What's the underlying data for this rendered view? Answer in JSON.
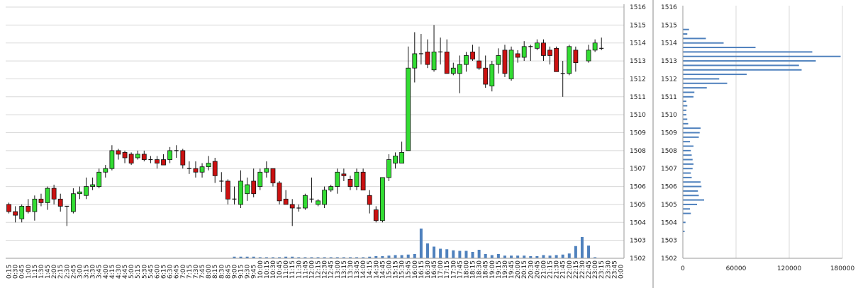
{
  "chart_data": [
    {
      "type": "candlestick",
      "title": "",
      "xlabel": "",
      "ylabel": "",
      "ylim": [
        1502,
        1516
      ],
      "y_ticks": [
        "1502",
        "1503",
        "1504",
        "1505",
        "1506",
        "1507",
        "1508",
        "1509",
        "1510",
        "1511",
        "1512",
        "1513",
        "1514",
        "1515",
        "1516"
      ],
      "grid": true,
      "colors": {
        "up": "#33dd33",
        "down": "#cc1111",
        "volume": "#4f81bd",
        "grid": "#d8d8d8"
      },
      "candles": [
        {
          "t": "0:15",
          "o": 1505.0,
          "h": 1505.1,
          "l": 1504.5,
          "c": 1504.6
        },
        {
          "t": "0:30",
          "o": 1504.6,
          "h": 1504.9,
          "l": 1504.0,
          "c": 1504.4
        },
        {
          "t": "0:45",
          "o": 1504.2,
          "h": 1505.0,
          "l": 1504.0,
          "c": 1504.9
        },
        {
          "t": "1:00",
          "o": 1504.9,
          "h": 1505.3,
          "l": 1504.5,
          "c": 1504.6
        },
        {
          "t": "1:15",
          "o": 1504.6,
          "h": 1505.5,
          "l": 1504.1,
          "c": 1505.3
        },
        {
          "t": "1:30",
          "o": 1505.3,
          "h": 1505.6,
          "l": 1504.9,
          "c": 1505.1
        },
        {
          "t": "1:45",
          "o": 1505.1,
          "h": 1506.0,
          "l": 1504.7,
          "c": 1505.9
        },
        {
          "t": "2:00",
          "o": 1505.9,
          "h": 1506.1,
          "l": 1505.0,
          "c": 1505.3
        },
        {
          "t": "2:15",
          "o": 1505.3,
          "h": 1505.6,
          "l": 1504.6,
          "c": 1504.9
        },
        {
          "t": "2:30",
          "o": 1504.9,
          "h": 1504.9,
          "l": 1503.8,
          "c": 1504.9
        },
        {
          "t": "2:45",
          "o": 1504.6,
          "h": 1505.9,
          "l": 1504.5,
          "c": 1505.6
        },
        {
          "t": "3:00",
          "o": 1505.6,
          "h": 1506.0,
          "l": 1505.3,
          "c": 1505.7
        },
        {
          "t": "3:15",
          "o": 1505.5,
          "h": 1506.5,
          "l": 1505.3,
          "c": 1506.0
        },
        {
          "t": "3:30",
          "o": 1506.0,
          "h": 1506.5,
          "l": 1505.8,
          "c": 1506.1
        },
        {
          "t": "3:45",
          "o": 1506.0,
          "h": 1507.0,
          "l": 1505.9,
          "c": 1506.8
        },
        {
          "t": "4:00",
          "o": 1506.8,
          "h": 1507.2,
          "l": 1506.5,
          "c": 1507.0
        },
        {
          "t": "4:15",
          "o": 1507.0,
          "h": 1508.3,
          "l": 1506.9,
          "c": 1508.0
        },
        {
          "t": "4:30",
          "o": 1508.0,
          "h": 1508.1,
          "l": 1507.5,
          "c": 1507.8
        },
        {
          "t": "4:45",
          "o": 1507.9,
          "h": 1508.0,
          "l": 1507.3,
          "c": 1507.6
        },
        {
          "t": "5:00",
          "o": 1507.8,
          "h": 1507.9,
          "l": 1507.2,
          "c": 1507.3
        },
        {
          "t": "5:15",
          "o": 1507.6,
          "h": 1508.0,
          "l": 1507.5,
          "c": 1507.8
        },
        {
          "t": "5:30",
          "o": 1507.8,
          "h": 1508.0,
          "l": 1507.4,
          "c": 1507.5
        },
        {
          "t": "5:45",
          "o": 1507.5,
          "h": 1507.7,
          "l": 1507.3,
          "c": 1507.5
        },
        {
          "t": "6:00",
          "o": 1507.5,
          "h": 1507.7,
          "l": 1507.0,
          "c": 1507.3
        },
        {
          "t": "6:15",
          "o": 1507.5,
          "h": 1507.8,
          "l": 1507.2,
          "c": 1507.2
        },
        {
          "t": "6:30",
          "o": 1507.5,
          "h": 1508.2,
          "l": 1507.3,
          "c": 1508.0
        },
        {
          "t": "6:45",
          "o": 1508.0,
          "h": 1508.3,
          "l": 1507.6,
          "c": 1508.0
        },
        {
          "t": "7:00",
          "o": 1508.0,
          "h": 1508.1,
          "l": 1507.0,
          "c": 1507.2
        },
        {
          "t": "7:15",
          "o": 1507.0,
          "h": 1507.4,
          "l": 1506.7,
          "c": 1507.0
        },
        {
          "t": "7:30",
          "o": 1507.0,
          "h": 1507.4,
          "l": 1506.5,
          "c": 1506.8
        },
        {
          "t": "7:45",
          "o": 1506.8,
          "h": 1507.3,
          "l": 1506.5,
          "c": 1507.1
        },
        {
          "t": "8:00",
          "o": 1507.1,
          "h": 1507.7,
          "l": 1506.9,
          "c": 1507.3
        },
        {
          "t": "8:15",
          "o": 1507.4,
          "h": 1507.6,
          "l": 1506.2,
          "c": 1506.6
        },
        {
          "t": "8:30",
          "o": 1506.3,
          "h": 1506.8,
          "l": 1505.7,
          "c": 1506.3
        },
        {
          "t": "8:45",
          "o": 1506.3,
          "h": 1506.4,
          "l": 1505.0,
          "c": 1505.3
        },
        {
          "t": "9:00",
          "o": 1505.3,
          "h": 1506.0,
          "l": 1505.0,
          "c": 1505.3
        },
        {
          "t": "9:15",
          "o": 1505.0,
          "h": 1506.9,
          "l": 1504.8,
          "c": 1506.3
        },
        {
          "t": "9:30",
          "o": 1505.6,
          "h": 1506.5,
          "l": 1505.2,
          "c": 1506.1
        },
        {
          "t": "9:45",
          "o": 1506.3,
          "h": 1507.0,
          "l": 1505.4,
          "c": 1505.6
        },
        {
          "t": "10:00",
          "o": 1506.0,
          "h": 1507.0,
          "l": 1505.8,
          "c": 1506.8
        },
        {
          "t": "10:15",
          "o": 1506.8,
          "h": 1507.4,
          "l": 1506.5,
          "c": 1507.0
        },
        {
          "t": "10:30",
          "o": 1507.0,
          "h": 1507.0,
          "l": 1506.0,
          "c": 1506.2
        },
        {
          "t": "10:45",
          "o": 1506.2,
          "h": 1506.3,
          "l": 1505.0,
          "c": 1505.2
        },
        {
          "t": "11:00",
          "o": 1505.3,
          "h": 1505.8,
          "l": 1505.0,
          "c": 1505.0
        },
        {
          "t": "11:15",
          "o": 1505.0,
          "h": 1505.3,
          "l": 1503.8,
          "c": 1504.8
        },
        {
          "t": "11:30",
          "o": 1504.8,
          "h": 1505.0,
          "l": 1504.6,
          "c": 1504.8
        },
        {
          "t": "11:45",
          "o": 1504.8,
          "h": 1505.6,
          "l": 1504.7,
          "c": 1505.5
        },
        {
          "t": "12:00",
          "o": 1505.3,
          "h": 1506.5,
          "l": 1505.1,
          "c": 1505.3
        },
        {
          "t": "12:15",
          "o": 1505.0,
          "h": 1505.3,
          "l": 1504.9,
          "c": 1505.2
        },
        {
          "t": "12:30",
          "o": 1505.0,
          "h": 1506.0,
          "l": 1504.8,
          "c": 1505.8
        },
        {
          "t": "12:45",
          "o": 1505.8,
          "h": 1506.1,
          "l": 1505.7,
          "c": 1506.0
        },
        {
          "t": "13:00",
          "o": 1506.0,
          "h": 1507.0,
          "l": 1505.6,
          "c": 1506.8
        },
        {
          "t": "13:15",
          "o": 1506.7,
          "h": 1507.0,
          "l": 1506.3,
          "c": 1506.6
        },
        {
          "t": "13:30",
          "o": 1506.4,
          "h": 1506.6,
          "l": 1505.8,
          "c": 1506.0
        },
        {
          "t": "13:45",
          "o": 1506.0,
          "h": 1507.0,
          "l": 1505.8,
          "c": 1506.8
        },
        {
          "t": "14:00",
          "o": 1506.8,
          "h": 1507.0,
          "l": 1505.8,
          "c": 1505.8
        },
        {
          "t": "14:15",
          "o": 1505.5,
          "h": 1505.8,
          "l": 1504.5,
          "c": 1505.0
        },
        {
          "t": "14:30",
          "o": 1504.7,
          "h": 1504.9,
          "l": 1504.0,
          "c": 1504.1
        },
        {
          "t": "14:45",
          "o": 1504.1,
          "h": 1506.5,
          "l": 1504.0,
          "c": 1506.5
        },
        {
          "t": "15:00",
          "o": 1506.5,
          "h": 1507.8,
          "l": 1506.3,
          "c": 1507.5
        },
        {
          "t": "15:15",
          "o": 1507.3,
          "h": 1507.9,
          "l": 1507.0,
          "c": 1507.7
        },
        {
          "t": "15:30",
          "o": 1507.3,
          "h": 1508.5,
          "l": 1507.3,
          "c": 1507.9
        },
        {
          "t": "15:45",
          "o": 1508.0,
          "h": 1513.8,
          "l": 1508.0,
          "c": 1512.6
        },
        {
          "t": "16:00",
          "o": 1512.6,
          "h": 1514.6,
          "l": 1511.8,
          "c": 1513.4
        },
        {
          "t": "16:15",
          "o": 1513.4,
          "h": 1514.5,
          "l": 1512.8,
          "c": 1513.4
        },
        {
          "t": "16:30",
          "o": 1513.5,
          "h": 1514.2,
          "l": 1512.6,
          "c": 1512.8
        },
        {
          "t": "16:45",
          "o": 1512.5,
          "h": 1515.0,
          "l": 1512.4,
          "c": 1513.5
        },
        {
          "t": "17:00",
          "o": 1513.5,
          "h": 1514.3,
          "l": 1512.8,
          "c": 1513.5
        },
        {
          "t": "17:15",
          "o": 1513.5,
          "h": 1514.2,
          "l": 1512.3,
          "c": 1512.3
        },
        {
          "t": "17:30",
          "o": 1512.3,
          "h": 1512.9,
          "l": 1512.2,
          "c": 1512.6
        },
        {
          "t": "17:45",
          "o": 1512.3,
          "h": 1513.3,
          "l": 1511.2,
          "c": 1512.8
        },
        {
          "t": "18:00",
          "o": 1512.8,
          "h": 1513.5,
          "l": 1512.4,
          "c": 1513.3
        },
        {
          "t": "18:15",
          "o": 1513.5,
          "h": 1513.9,
          "l": 1513.0,
          "c": 1513.1
        },
        {
          "t": "18:30",
          "o": 1513.0,
          "h": 1513.8,
          "l": 1512.5,
          "c": 1512.6
        },
        {
          "t": "18:45",
          "o": 1512.6,
          "h": 1513.3,
          "l": 1511.5,
          "c": 1511.7
        },
        {
          "t": "19:00",
          "o": 1511.6,
          "h": 1513.0,
          "l": 1511.3,
          "c": 1512.8
        },
        {
          "t": "19:15",
          "o": 1512.8,
          "h": 1513.7,
          "l": 1512.3,
          "c": 1513.3
        },
        {
          "t": "19:30",
          "o": 1513.6,
          "h": 1513.9,
          "l": 1512.1,
          "c": 1512.3
        },
        {
          "t": "19:45",
          "o": 1512.0,
          "h": 1513.8,
          "l": 1511.9,
          "c": 1513.6
        },
        {
          "t": "20:00",
          "o": 1513.4,
          "h": 1513.6,
          "l": 1512.9,
          "c": 1513.2
        },
        {
          "t": "20:15",
          "o": 1513.2,
          "h": 1514.1,
          "l": 1513.0,
          "c": 1513.8
        },
        {
          "t": "20:30",
          "o": 1513.8,
          "h": 1513.9,
          "l": 1513.0,
          "c": 1513.8
        },
        {
          "t": "20:45",
          "o": 1513.7,
          "h": 1514.2,
          "l": 1513.6,
          "c": 1514.0
        },
        {
          "t": "21:00",
          "o": 1514.0,
          "h": 1514.2,
          "l": 1513.0,
          "c": 1513.3
        },
        {
          "t": "21:15",
          "o": 1513.6,
          "h": 1513.8,
          "l": 1512.8,
          "c": 1513.3
        },
        {
          "t": "21:30",
          "o": 1513.7,
          "h": 1513.8,
          "l": 1512.4,
          "c": 1512.4
        },
        {
          "t": "21:45",
          "o": 1512.3,
          "h": 1513.0,
          "l": 1511.0,
          "c": 1512.3
        },
        {
          "t": "22:00",
          "o": 1512.3,
          "h": 1513.9,
          "l": 1512.2,
          "c": 1513.8
        },
        {
          "t": "22:15",
          "o": 1513.6,
          "h": 1513.8,
          "l": 1512.4,
          "c": 1512.9
        },
        {
          "t": "22:30",
          "o": null,
          "h": null,
          "l": null,
          "c": null
        },
        {
          "t": "22:45",
          "o": 1513.0,
          "h": 1513.9,
          "l": 1512.9,
          "c": 1513.6
        },
        {
          "t": "23:00",
          "o": 1513.6,
          "h": 1514.2,
          "l": 1513.5,
          "c": 1514.0
        },
        {
          "t": "23:15",
          "o": 1513.7,
          "h": 1514.3,
          "l": 1513.6,
          "c": 1513.7
        },
        {
          "t": "23:30",
          "o": null,
          "h": null,
          "l": null,
          "c": null
        },
        {
          "t": "23:45",
          "o": null,
          "h": null,
          "l": null,
          "c": null
        },
        {
          "t": "0:00",
          "o": null,
          "h": null,
          "l": null,
          "c": null
        }
      ],
      "volume_relative": [
        0,
        0,
        0,
        0,
        0,
        0,
        0,
        0,
        0,
        0,
        0,
        0,
        0,
        0,
        0,
        0,
        0,
        0,
        0,
        0,
        0,
        0,
        0,
        0,
        0,
        0,
        0,
        0,
        0,
        0,
        0,
        0,
        0,
        0,
        0,
        0.3,
        0.3,
        0.3,
        0.3,
        0.2,
        0.2,
        0.2,
        0.2,
        0.3,
        0.3,
        0.2,
        0.2,
        0.2,
        0.2,
        0.2,
        0.2,
        0.2,
        0.2,
        0.2,
        0.2,
        0.2,
        0.3,
        0.4,
        0.4,
        0.5,
        0.6,
        0.6,
        0.7,
        0.8,
        5.6,
        2.8,
        2.2,
        1.8,
        1.7,
        1.5,
        1.4,
        1.4,
        1.2,
        1.6,
        0.8,
        0.6,
        0.8,
        0.5,
        0.5,
        0.5,
        0.5,
        0.4,
        0.4,
        0.6,
        0.5,
        0.6,
        0.7,
        0.9,
        2.3,
        4.0,
        2.4,
        0.2,
        0,
        0,
        0,
        0,
        0
      ]
    },
    {
      "type": "bar",
      "orientation": "horizontal",
      "xlim": [
        0,
        180000
      ],
      "x_ticks": [
        "0",
        "60000",
        "120000",
        "180000"
      ],
      "ylim": [
        1502,
        1516
      ],
      "y_ticks": [
        "1502",
        "1503",
        "1504",
        "1505",
        "1506",
        "1507",
        "1508",
        "1509",
        "1510",
        "1511",
        "1512",
        "1513",
        "1514",
        "1515",
        "1516"
      ],
      "grid": true,
      "color": "#4f81bd",
      "profile": [
        {
          "price": 1503.5,
          "v": 2000
        },
        {
          "price": 1504.0,
          "v": 3000
        },
        {
          "price": 1504.5,
          "v": 9000
        },
        {
          "price": 1504.75,
          "v": 8000
        },
        {
          "price": 1505.0,
          "v": 16000
        },
        {
          "price": 1505.25,
          "v": 24000
        },
        {
          "price": 1505.5,
          "v": 18000
        },
        {
          "price": 1505.75,
          "v": 17000
        },
        {
          "price": 1506.0,
          "v": 21000
        },
        {
          "price": 1506.25,
          "v": 20000
        },
        {
          "price": 1506.5,
          "v": 10000
        },
        {
          "price": 1506.75,
          "v": 9000
        },
        {
          "price": 1507.0,
          "v": 11000
        },
        {
          "price": 1507.25,
          "v": 12000
        },
        {
          "price": 1507.5,
          "v": 11000
        },
        {
          "price": 1507.75,
          "v": 10000
        },
        {
          "price": 1508.0,
          "v": 9000
        },
        {
          "price": 1508.25,
          "v": 12000
        },
        {
          "price": 1508.5,
          "v": 8000
        },
        {
          "price": 1508.75,
          "v": 18000
        },
        {
          "price": 1509.0,
          "v": 19000
        },
        {
          "price": 1509.25,
          "v": 20000
        },
        {
          "price": 1509.5,
          "v": 6000
        },
        {
          "price": 1509.75,
          "v": 5000
        },
        {
          "price": 1510.0,
          "v": 4000
        },
        {
          "price": 1510.25,
          "v": 4000
        },
        {
          "price": 1510.5,
          "v": 5000
        },
        {
          "price": 1510.75,
          "v": 4000
        },
        {
          "price": 1511.0,
          "v": 12000
        },
        {
          "price": 1511.25,
          "v": 13000
        },
        {
          "price": 1511.5,
          "v": 27000
        },
        {
          "price": 1511.75,
          "v": 50000
        },
        {
          "price": 1512.0,
          "v": 41000
        },
        {
          "price": 1512.25,
          "v": 72000
        },
        {
          "price": 1512.5,
          "v": 134000
        },
        {
          "price": 1512.75,
          "v": 131000
        },
        {
          "price": 1513.0,
          "v": 150000
        },
        {
          "price": 1513.25,
          "v": 178000
        },
        {
          "price": 1513.5,
          "v": 146000
        },
        {
          "price": 1513.75,
          "v": 82000
        },
        {
          "price": 1514.0,
          "v": 46000
        },
        {
          "price": 1514.25,
          "v": 26000
        },
        {
          "price": 1514.5,
          "v": 5000
        },
        {
          "price": 1514.75,
          "v": 7000
        }
      ]
    }
  ]
}
